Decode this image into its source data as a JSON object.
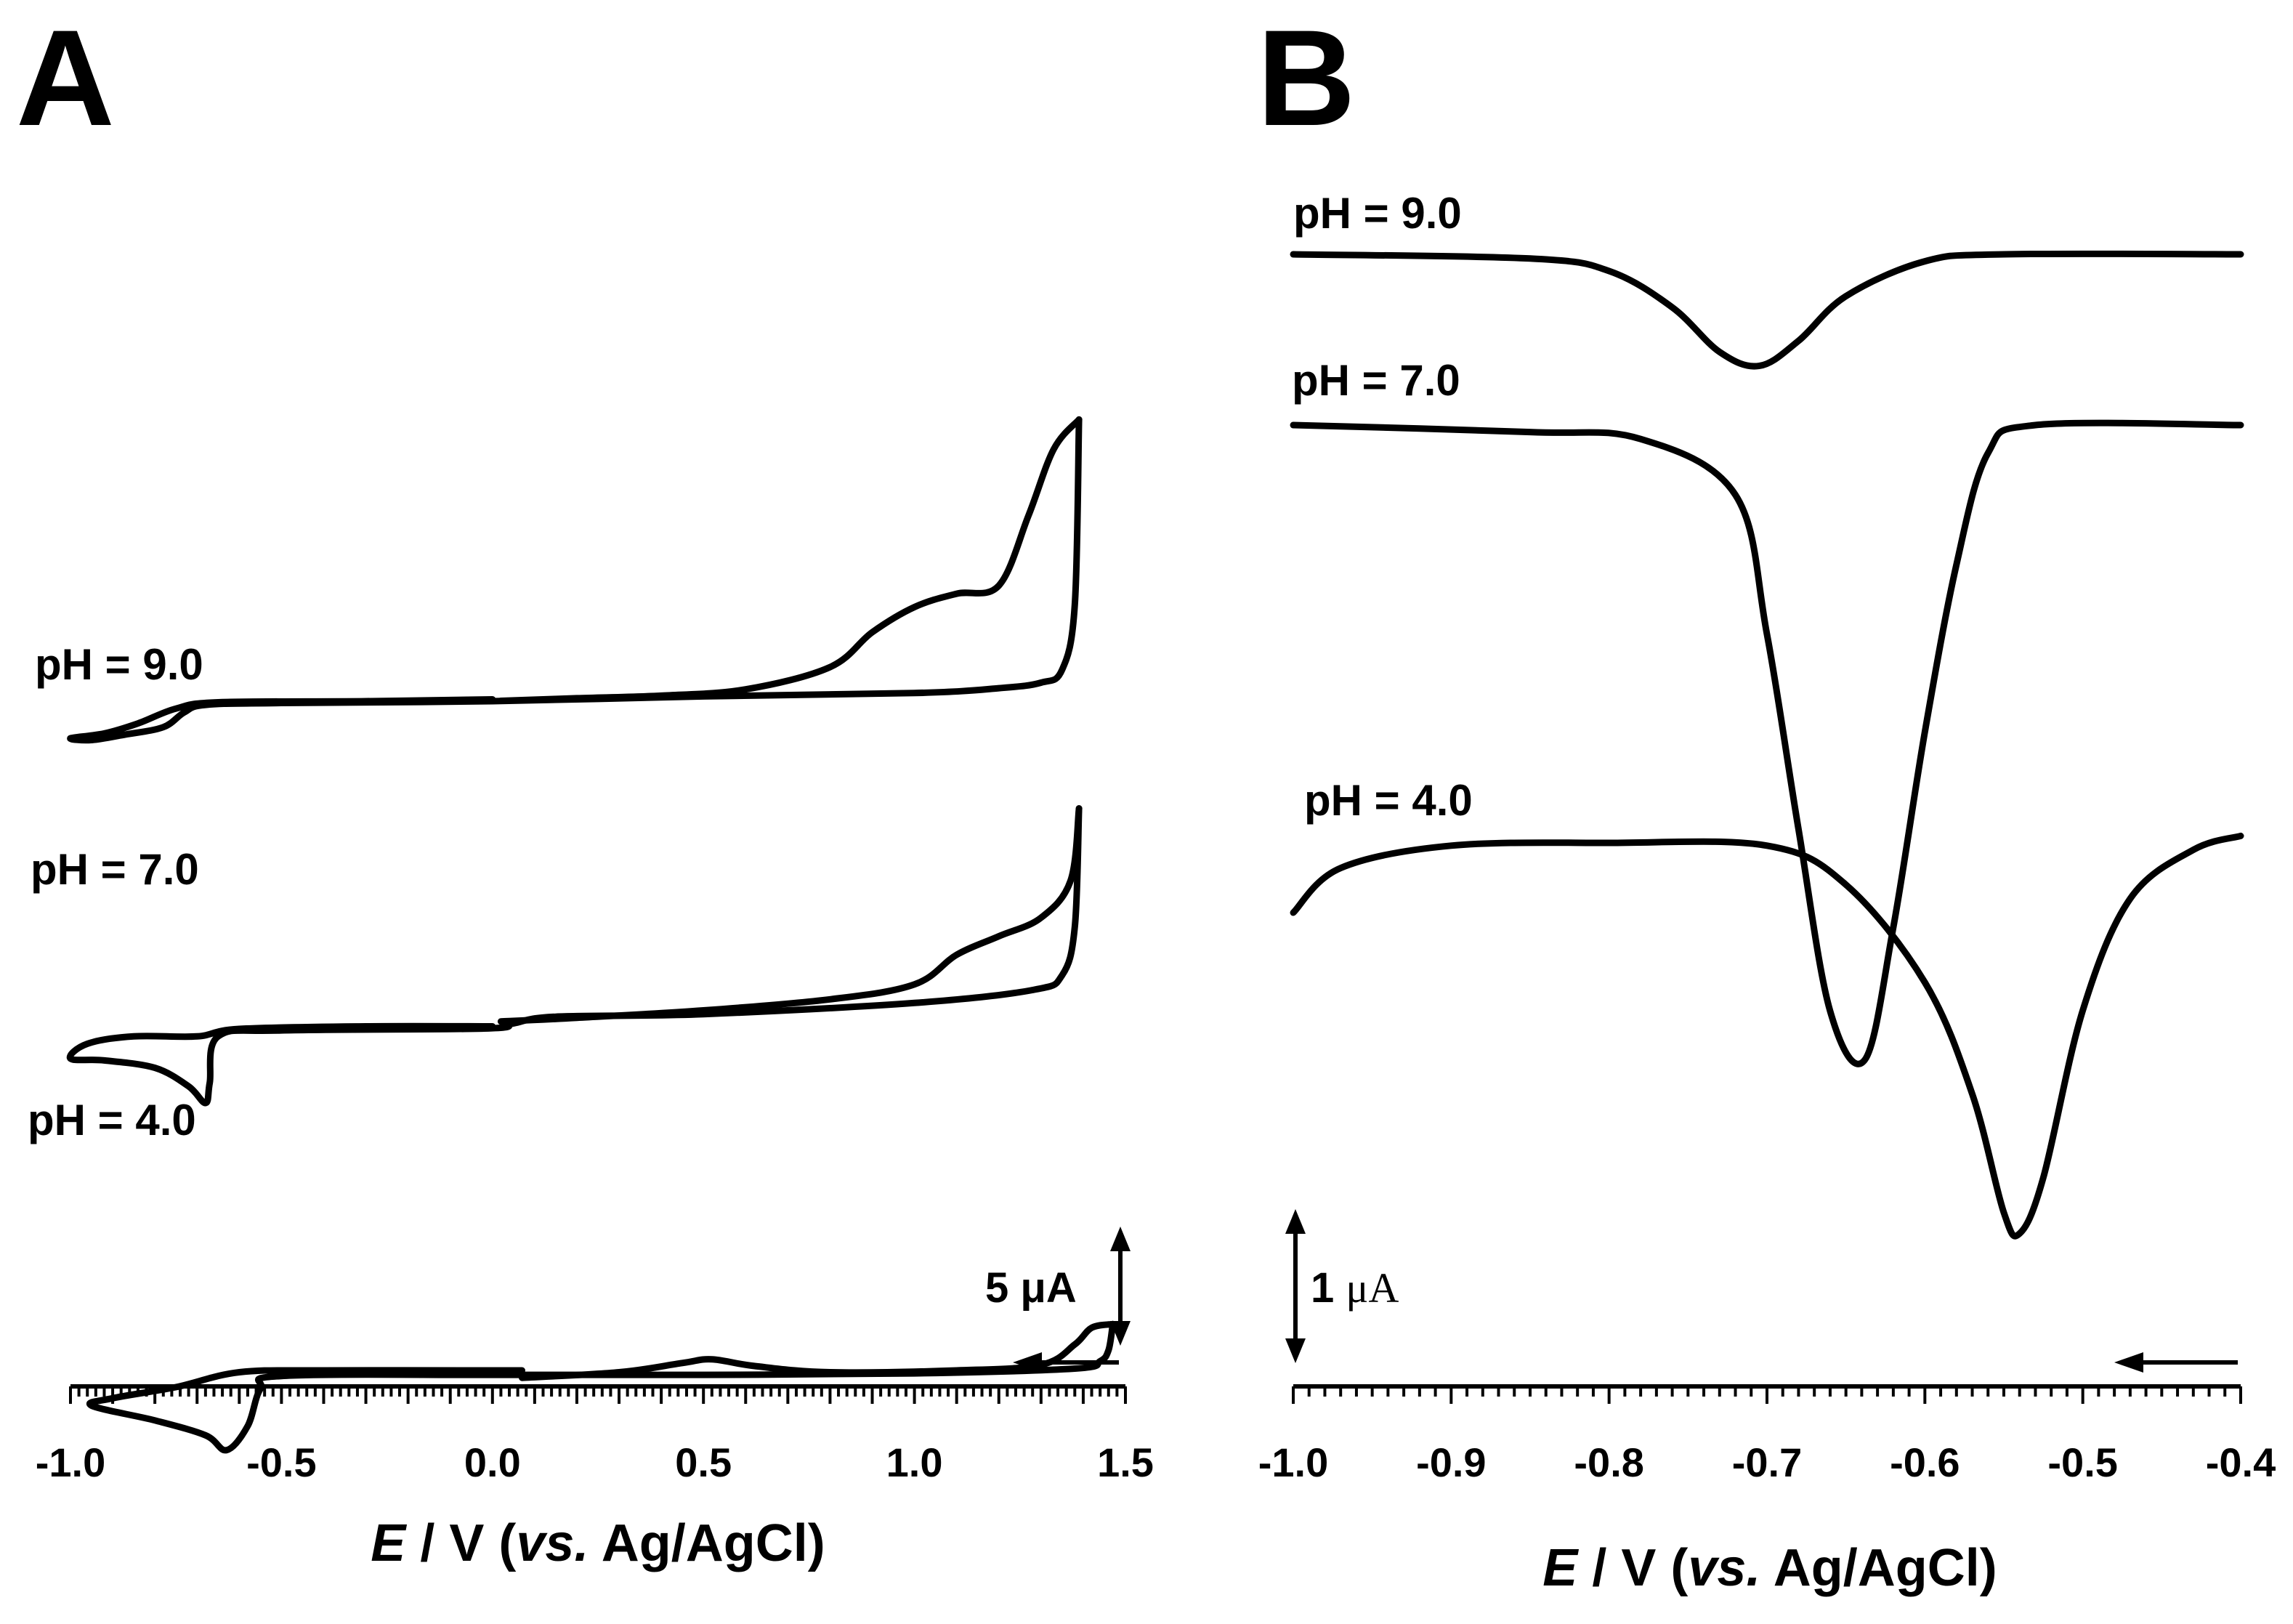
{
  "panels": {
    "a": {
      "letter": "A"
    },
    "b": {
      "letter": "B"
    }
  },
  "chart_data": [
    {
      "type": "line",
      "subtype": "cyclic voltammogram",
      "panel": "A",
      "xlabel": {
        "italic": "E",
        "mid": " / V (",
        "italic2": "vs.",
        "tail": " Ag/AgCl)"
      },
      "xlim": [
        -1.0,
        1.5
      ],
      "x_ticks": [
        -1.0,
        -0.5,
        0.0,
        0.5,
        1.0,
        1.5
      ],
      "x_tick_labels": [
        "-1.0",
        "-0.5",
        "0.0",
        "0.5",
        "1.0",
        "1.5"
      ],
      "scale_bar": {
        "label_num": "5 ",
        "label_unit": "μA",
        "value_uA": 5
      },
      "scan_direction": "negative",
      "series": [
        {
          "name": "pH = 9.0",
          "label": "pH = 9.0",
          "forward": [
            [
              0.02,
              -0.01
            ],
            [
              0.2,
              -0.08
            ],
            [
              0.4,
              -0.15
            ],
            [
              0.6,
              -0.32
            ],
            [
              0.8,
              -0.92
            ],
            [
              0.9,
              -1.86
            ],
            [
              1.0,
              -2.54
            ],
            [
              1.1,
              -2.9
            ],
            [
              1.2,
              -3.12
            ],
            [
              1.27,
              -5.0
            ],
            [
              1.33,
              -6.8
            ],
            [
              1.39,
              -7.6
            ]
          ],
          "reverse": [
            [
              1.39,
              -7.6
            ],
            [
              1.38,
              -2.6
            ],
            [
              1.35,
              -0.85
            ],
            [
              1.3,
              -0.5
            ],
            [
              1.2,
              -0.35
            ],
            [
              1.0,
              -0.22
            ],
            [
              0.5,
              -0.13
            ],
            [
              0.0,
              0.0
            ],
            [
              -0.5,
              0.05
            ],
            [
              -0.68,
              0.1
            ],
            [
              -0.73,
              0.3
            ],
            [
              -0.78,
              0.7
            ],
            [
              -0.87,
              0.9
            ],
            [
              -0.95,
              1.05
            ],
            [
              -1.0,
              1.0
            ],
            [
              -0.92,
              0.87
            ],
            [
              -0.84,
              0.6
            ],
            [
              -0.75,
              0.2
            ],
            [
              -0.65,
              0.03
            ],
            [
              -0.3,
              0.0
            ],
            [
              0.0,
              -0.05
            ]
          ]
        },
        {
          "name": "pH = 7.0",
          "label": "pH = 7.0",
          "forward": [
            [
              0.02,
              3.35
            ],
            [
              0.2,
              3.25
            ],
            [
              0.5,
              3.05
            ],
            [
              0.8,
              2.75
            ],
            [
              1.0,
              2.35
            ],
            [
              1.1,
              1.55
            ],
            [
              1.2,
              1.05
            ],
            [
              1.3,
              0.55
            ],
            [
              1.37,
              -0.45
            ],
            [
              1.39,
              -2.4
            ]
          ],
          "reverse": [
            [
              1.39,
              -2.4
            ],
            [
              1.38,
              0.8
            ],
            [
              1.35,
              2.1
            ],
            [
              1.28,
              2.5
            ],
            [
              1.0,
              2.85
            ],
            [
              0.5,
              3.15
            ],
            [
              0.15,
              3.22
            ],
            [
              0.05,
              3.4
            ],
            [
              -0.02,
              3.54
            ],
            [
              -0.5,
              3.59
            ],
            [
              -0.65,
              3.75
            ],
            [
              -0.67,
              5.0
            ],
            [
              -0.68,
              5.55
            ],
            [
              -0.72,
              5.1
            ],
            [
              -0.8,
              4.6
            ],
            [
              -0.92,
              4.4
            ],
            [
              -1.0,
              4.35
            ],
            [
              -0.96,
              3.95
            ],
            [
              -0.85,
              3.75
            ],
            [
              -0.7,
              3.75
            ],
            [
              -0.6,
              3.55
            ],
            [
              -0.3,
              3.48
            ],
            [
              0.0,
              3.48
            ]
          ]
        },
        {
          "name": "pH = 4.0",
          "label": "pH = 4.0",
          "forward": [
            [
              0.07,
              6.2
            ],
            [
              0.3,
              6.05
            ],
            [
              0.45,
              5.8
            ],
            [
              0.52,
              5.7
            ],
            [
              0.62,
              5.88
            ],
            [
              0.8,
              6.05
            ],
            [
              1.1,
              6.0
            ],
            [
              1.3,
              5.85
            ],
            [
              1.38,
              5.3
            ],
            [
              1.42,
              4.85
            ],
            [
              1.47,
              4.75
            ]
          ],
          "reverse": [
            [
              1.47,
              4.75
            ],
            [
              1.46,
              5.45
            ],
            [
              1.44,
              5.75
            ],
            [
              1.38,
              5.95
            ],
            [
              1.0,
              6.08
            ],
            [
              0.5,
              6.12
            ],
            [
              0.0,
              6.12
            ],
            [
              -0.5,
              6.15
            ],
            [
              -0.55,
              6.5
            ],
            [
              -0.58,
              7.5
            ],
            [
              -0.63,
              8.15
            ],
            [
              -0.68,
              7.75
            ],
            [
              -0.8,
              7.35
            ],
            [
              -0.95,
              6.95
            ],
            [
              -0.9,
              6.75
            ],
            [
              -0.75,
              6.45
            ],
            [
              -0.6,
              6.05
            ],
            [
              -0.4,
              6.0
            ],
            [
              0.0,
              6.0
            ],
            [
              0.07,
              6.0
            ]
          ]
        }
      ]
    },
    {
      "type": "line",
      "subtype": "differential pulse voltammogram",
      "panel": "B",
      "xlabel": {
        "italic": "E",
        "mid": " / V (",
        "italic2": "vs.",
        "tail": " Ag/AgCl)"
      },
      "xlim": [
        -1.0,
        -0.4
      ],
      "x_ticks": [
        -1.0,
        -0.9,
        -0.8,
        -0.7,
        -0.6,
        -0.5,
        -0.4
      ],
      "x_tick_labels": [
        "-1.0",
        "-0.9",
        "-0.8",
        "-0.7",
        "-0.6",
        "-0.5",
        "-0.4"
      ],
      "scale_bar": {
        "label_num": "1 ",
        "label_unit": "μA",
        "value_uA": 1
      },
      "scan_direction": "negative",
      "series": [
        {
          "name": "pH = 9.0",
          "label": "pH = 9.0",
          "points": [
            [
              -1.0,
              0.0
            ],
            [
              -0.85,
              -0.03
            ],
            [
              -0.8,
              -0.12
            ],
            [
              -0.76,
              -0.38
            ],
            [
              -0.73,
              -0.7
            ],
            [
              -0.705,
              -0.8
            ],
            [
              -0.68,
              -0.62
            ],
            [
              -0.65,
              -0.3
            ],
            [
              -0.6,
              -0.05
            ],
            [
              -0.55,
              0.0
            ],
            [
              -0.4,
              0.0
            ]
          ]
        },
        {
          "name": "pH = 7.0",
          "label": "pH = 7.0",
          "points": [
            [
              -1.0,
              0.0
            ],
            [
              -0.85,
              -0.05
            ],
            [
              -0.78,
              -0.1
            ],
            [
              -0.72,
              -0.5
            ],
            [
              -0.7,
              -1.5
            ],
            [
              -0.68,
              -2.9
            ],
            [
              -0.66,
              -4.2
            ],
            [
              -0.638,
              -4.55
            ],
            [
              -0.62,
              -3.6
            ],
            [
              -0.6,
              -2.2
            ],
            [
              -0.58,
              -1.0
            ],
            [
              -0.56,
              -0.2
            ],
            [
              -0.53,
              0.0
            ],
            [
              -0.4,
              0.0
            ]
          ]
        },
        {
          "name": "pH = 4.0",
          "label": "pH = 4.0",
          "points": [
            [
              -1.0,
              -0.5
            ],
            [
              -0.97,
              -0.18
            ],
            [
              -0.9,
              -0.02
            ],
            [
              -0.8,
              0.0
            ],
            [
              -0.7,
              -0.02
            ],
            [
              -0.65,
              -0.3
            ],
            [
              -0.6,
              -1.0
            ],
            [
              -0.57,
              -1.8
            ],
            [
              -0.55,
              -2.65
            ],
            [
              -0.54,
              -2.8
            ],
            [
              -0.525,
              -2.4
            ],
            [
              -0.5,
              -1.2
            ],
            [
              -0.47,
              -0.4
            ],
            [
              -0.43,
              -0.05
            ],
            [
              -0.4,
              0.05
            ]
          ]
        }
      ]
    }
  ]
}
